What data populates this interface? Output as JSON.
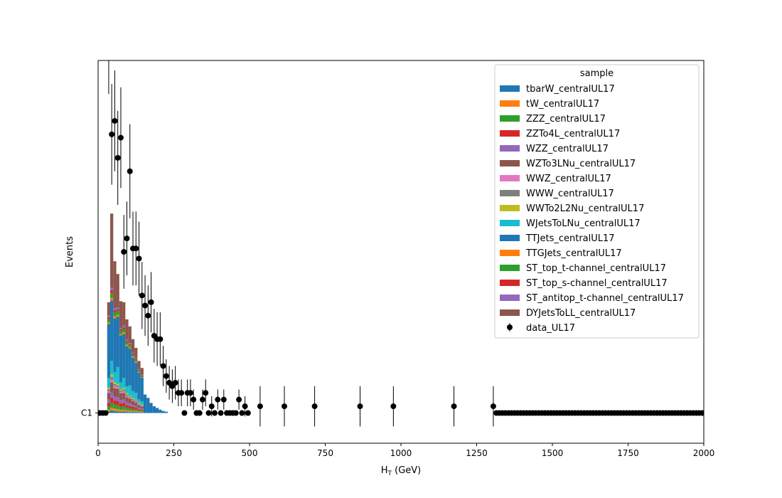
{
  "chart_data": {
    "type": "bar",
    "stacked": true,
    "xlabel_main": "H",
    "xlabel_sub": "T",
    "xlabel_unit": " (GeV)",
    "ylabel": "Events",
    "xlim": [
      0,
      2000
    ],
    "ylim": [
      -0.9,
      10.5
    ],
    "x_ticks": [
      0,
      250,
      500,
      750,
      1000,
      1250,
      1500,
      1750,
      2000
    ],
    "y_tick_values": [
      0
    ],
    "y_tick_labels": [
      "C1"
    ],
    "grid": false,
    "legend": {
      "title": "sample",
      "placement": "top-right",
      "data_label": "data_UL17"
    },
    "bin_width": 10,
    "bin_start": 30,
    "series": [
      {
        "name": "tbarW_centralUL17",
        "color": "#1f77b4",
        "values": [
          0.05,
          0.08,
          0.06,
          0.05,
          0.04,
          0.05,
          0.04,
          0.03,
          0.03,
          0.03,
          0.02,
          0.02
        ]
      },
      {
        "name": "tW_centralUL17",
        "color": "#ff7f0e",
        "values": [
          0.05,
          0.08,
          0.07,
          0.06,
          0.05,
          0.05,
          0.04,
          0.04,
          0.03,
          0.03,
          0.02,
          0.02
        ]
      },
      {
        "name": "ZZZ_centralUL17",
        "color": "#2ca02c",
        "values": [
          0.1,
          0.15,
          0.12,
          0.12,
          0.1,
          0.1,
          0.08,
          0.07,
          0.06,
          0.05,
          0.04,
          0.03
        ]
      },
      {
        "name": "ZZTo4L_centralUL17",
        "color": "#d62728",
        "values": [
          0.1,
          0.15,
          0.12,
          0.12,
          0.1,
          0.1,
          0.08,
          0.07,
          0.06,
          0.05,
          0.04,
          0.03
        ]
      },
      {
        "name": "WZZ_centralUL17",
        "color": "#9467bd",
        "values": [
          0.1,
          0.15,
          0.12,
          0.12,
          0.1,
          0.1,
          0.08,
          0.07,
          0.06,
          0.05,
          0.04,
          0.03
        ]
      },
      {
        "name": "WZTo3LNu_centralUL17",
        "color": "#8c564b",
        "values": [
          0.2,
          0.3,
          0.25,
          0.25,
          0.2,
          0.2,
          0.15,
          0.15,
          0.12,
          0.1,
          0.08,
          0.06
        ]
      },
      {
        "name": "WWZ_centralUL17",
        "color": "#e377c2",
        "values": [
          0.05,
          0.08,
          0.06,
          0.05,
          0.04,
          0.05,
          0.04,
          0.03,
          0.03,
          0.03,
          0.02,
          0.02
        ]
      },
      {
        "name": "WWW_centralUL17",
        "color": "#7f7f7f",
        "values": [
          0.05,
          0.08,
          0.06,
          0.05,
          0.04,
          0.05,
          0.04,
          0.03,
          0.03,
          0.03,
          0.02,
          0.02
        ]
      },
      {
        "name": "WWTo2L2Nu_centralUL17",
        "color": "#bcbd22",
        "values": [
          0.05,
          0.08,
          0.06,
          0.05,
          0.04,
          0.05,
          0.04,
          0.03,
          0.03,
          0.03,
          0.02,
          0.02
        ]
      },
      {
        "name": "WJetsToLNu_centralUL17",
        "color": "#17becf",
        "values": [
          0.3,
          0.4,
          0.3,
          0.5,
          0.2,
          0.3,
          0.2,
          0.3,
          0.2,
          0.2,
          0.1,
          0.1
        ]
      },
      {
        "name": "TTJets_centralUL17",
        "color": "#1f77b4",
        "values": [
          1.6,
          1.8,
          1.6,
          1.5,
          1.4,
          1.3,
          1.2,
          1.1,
          1.0,
          0.9,
          0.8,
          0.7,
          0.55,
          0.45,
          0.3,
          0.2,
          0.15,
          0.1,
          0.06,
          0.04
        ]
      },
      {
        "name": "TTGJets_centralUL17",
        "color": "#ff7f0e",
        "values": [
          0.05,
          0.08,
          0.06,
          0.05,
          0.04,
          0.05,
          0.04,
          0.03,
          0.03,
          0.03,
          0.02,
          0.02
        ]
      },
      {
        "name": "ST_top_t-channel_centralUL17",
        "color": "#2ca02c",
        "values": [
          0.1,
          0.15,
          0.12,
          0.12,
          0.1,
          0.1,
          0.08,
          0.07,
          0.06,
          0.05,
          0.04,
          0.03
        ]
      },
      {
        "name": "ST_top_s-channel_centralUL17",
        "color": "#d62728",
        "values": [
          0.05,
          0.08,
          0.06,
          0.05,
          0.04,
          0.05,
          0.04,
          0.03,
          0.03,
          0.03,
          0.02,
          0.02
        ]
      },
      {
        "name": "ST_antitop_t-channel_centralUL17",
        "color": "#9467bd",
        "values": [
          0.05,
          0.08,
          0.06,
          0.05,
          0.04,
          0.05,
          0.04,
          0.03,
          0.03,
          0.03,
          0.02,
          0.02
        ]
      },
      {
        "name": "DYJetsToLL_centralUL17",
        "color": "#8c564b",
        "values": [
          0.4,
          2.2,
          1.4,
          1.0,
          0.8,
          0.7,
          0.6,
          0.5,
          0.4,
          0.3,
          0.25,
          0.2
        ]
      }
    ],
    "data": {
      "name": "data_UL17",
      "x": [
        5,
        15,
        25,
        35,
        45,
        55,
        65,
        75,
        85,
        95,
        105,
        115,
        125,
        135,
        145,
        155,
        165,
        175,
        185,
        195,
        205,
        215,
        225,
        235,
        245,
        255,
        265,
        275,
        285,
        295,
        305,
        315,
        325,
        335,
        345,
        355,
        365,
        375,
        385,
        395,
        405,
        415,
        425,
        435,
        445,
        455,
        465,
        475,
        485,
        495,
        535,
        615,
        715,
        865,
        975,
        1175,
        1305
      ],
      "y": [
        0,
        0,
        0,
        11,
        8.3,
        8.7,
        7.6,
        8.2,
        4.8,
        5.2,
        7.2,
        4.9,
        4.9,
        4.6,
        3.5,
        3.2,
        2.9,
        3.3,
        2.3,
        2.2,
        2.2,
        1.4,
        1.1,
        0.9,
        0.8,
        0.9,
        0.6,
        0.6,
        0,
        0.6,
        0.6,
        0.4,
        0,
        0,
        0.4,
        0.6,
        0,
        0.2,
        0,
        0.4,
        0,
        0.4,
        0,
        0,
        0,
        0,
        0.4,
        0,
        0.2,
        0,
        0.2,
        0.2,
        0.2,
        0.2,
        0.2,
        0.2,
        0.2
      ],
      "yerr": [
        0,
        0,
        0,
        1.5,
        1.5,
        1.5,
        1.4,
        1.5,
        1.1,
        1.1,
        1.4,
        1.1,
        1.1,
        1.1,
        1.0,
        0.9,
        0.9,
        0.9,
        0.8,
        0.8,
        0.8,
        0.6,
        0.5,
        0.5,
        0.5,
        0.5,
        0.4,
        0.4,
        0,
        0.4,
        0.4,
        0.3,
        0,
        0,
        0.3,
        0.4,
        0,
        0.3,
        0,
        0.3,
        0,
        0.3,
        0,
        0,
        0,
        0,
        0.3,
        0,
        0.3,
        0,
        0.6,
        0.6,
        0.6,
        0.6,
        0.6,
        0.6,
        0.6
      ]
    }
  }
}
